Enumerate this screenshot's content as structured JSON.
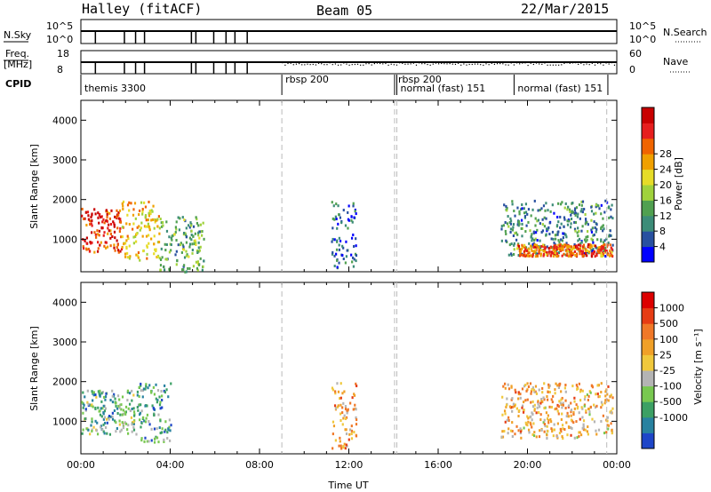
{
  "header": {
    "radar": "Halley (fitACF)",
    "beam": "Beam 05",
    "date": "22/Mar/2015"
  },
  "strips": {
    "nsky_label": "N.Sky",
    "nsky_ticks": [
      "10^5",
      "10^0"
    ],
    "nsearch_label": "N.Search",
    "nsearch_ticks": [
      "10^5",
      "10^0"
    ],
    "freq_label_1": "Freq.",
    "freq_label_2": "[MHz]",
    "freq_ticks": [
      "18",
      "8"
    ],
    "nave_label": "Nave",
    "nave_ticks": [
      "60",
      "0"
    ],
    "cpid_label": "CPID",
    "cpid_segments": [
      {
        "label": "themis 3300",
        "start": 0.0
      },
      {
        "label": "rbsp 200",
        "start": 9.0
      },
      {
        "label": "rbsp 200",
        "start": 14.05
      },
      {
        "label": "normal (fast) 151",
        "start": 14.15
      },
      {
        "label": "normal (fast) 151",
        "start": 19.4
      }
    ]
  },
  "chart_data": [
    {
      "type": "heatmap",
      "name": "power",
      "ylabel": "Slant Range [km]",
      "xlim": [
        0,
        24
      ],
      "ylim": [
        180,
        4500
      ],
      "yticks": [
        "1000",
        "2000",
        "3000",
        "4000"
      ],
      "colorbar": {
        "label": "Power [dB]",
        "ticks": [
          "4",
          "8",
          "12",
          "16",
          "20",
          "24",
          "28"
        ],
        "colors": [
          "#0000ff",
          "#2850a0",
          "#3c8c78",
          "#50a050",
          "#a0d23c",
          "#e6dc28",
          "#f0a000",
          "#f06400",
          "#e61e1e",
          "#c80000"
        ]
      },
      "regions": [
        {
          "t0": 0.0,
          "t1": 1.8,
          "r0": 700,
          "r1": 1800,
          "level": 0.85
        },
        {
          "t0": 1.8,
          "t1": 3.5,
          "r0": 500,
          "r1": 2000,
          "level": 0.6
        },
        {
          "t0": 3.5,
          "t1": 5.5,
          "r0": 200,
          "r1": 1600,
          "level": 0.35
        },
        {
          "t0": 11.2,
          "t1": 12.3,
          "r0": 300,
          "r1": 2000,
          "level": 0.2
        },
        {
          "t0": 18.8,
          "t1": 23.8,
          "r0": 600,
          "r1": 2000,
          "level": 0.25
        },
        {
          "t0": 19.5,
          "t1": 23.8,
          "r0": 600,
          "r1": 900,
          "level": 0.75
        }
      ]
    },
    {
      "type": "heatmap",
      "name": "velocity",
      "ylabel": "Slant Range [km]",
      "xlabel": "Time UT",
      "xlim": [
        0,
        24
      ],
      "ylim": [
        180,
        4500
      ],
      "yticks": [
        "1000",
        "2000",
        "3000",
        "4000"
      ],
      "xticks": [
        "00:00",
        "04:00",
        "08:00",
        "12:00",
        "16:00",
        "20:00",
        "00:00"
      ],
      "colorbar": {
        "label": "Velocity [m s⁻¹]",
        "ticks": [
          "1000",
          "500",
          "100",
          "25",
          "-25",
          "-100",
          "-500",
          "-1000"
        ],
        "colors": [
          "#1e46c8",
          "#2882a0",
          "#3ca064",
          "#78c850",
          "#b4b4b4",
          "#f0c83c",
          "#f0a028",
          "#f07828",
          "#e63c14",
          "#dc0000"
        ]
      },
      "regions": [
        {
          "t0": 0.0,
          "t1": 2.5,
          "r0": 700,
          "r1": 1800,
          "level": 0.3
        },
        {
          "t0": 2.5,
          "t1": 4.0,
          "r0": 500,
          "r1": 2000,
          "level": 0.25
        },
        {
          "t0": 11.2,
          "t1": 12.3,
          "r0": 300,
          "r1": 2000,
          "level": 0.65
        },
        {
          "t0": 18.8,
          "t1": 23.8,
          "r0": 600,
          "r1": 2000,
          "level": 0.6
        }
      ]
    }
  ]
}
